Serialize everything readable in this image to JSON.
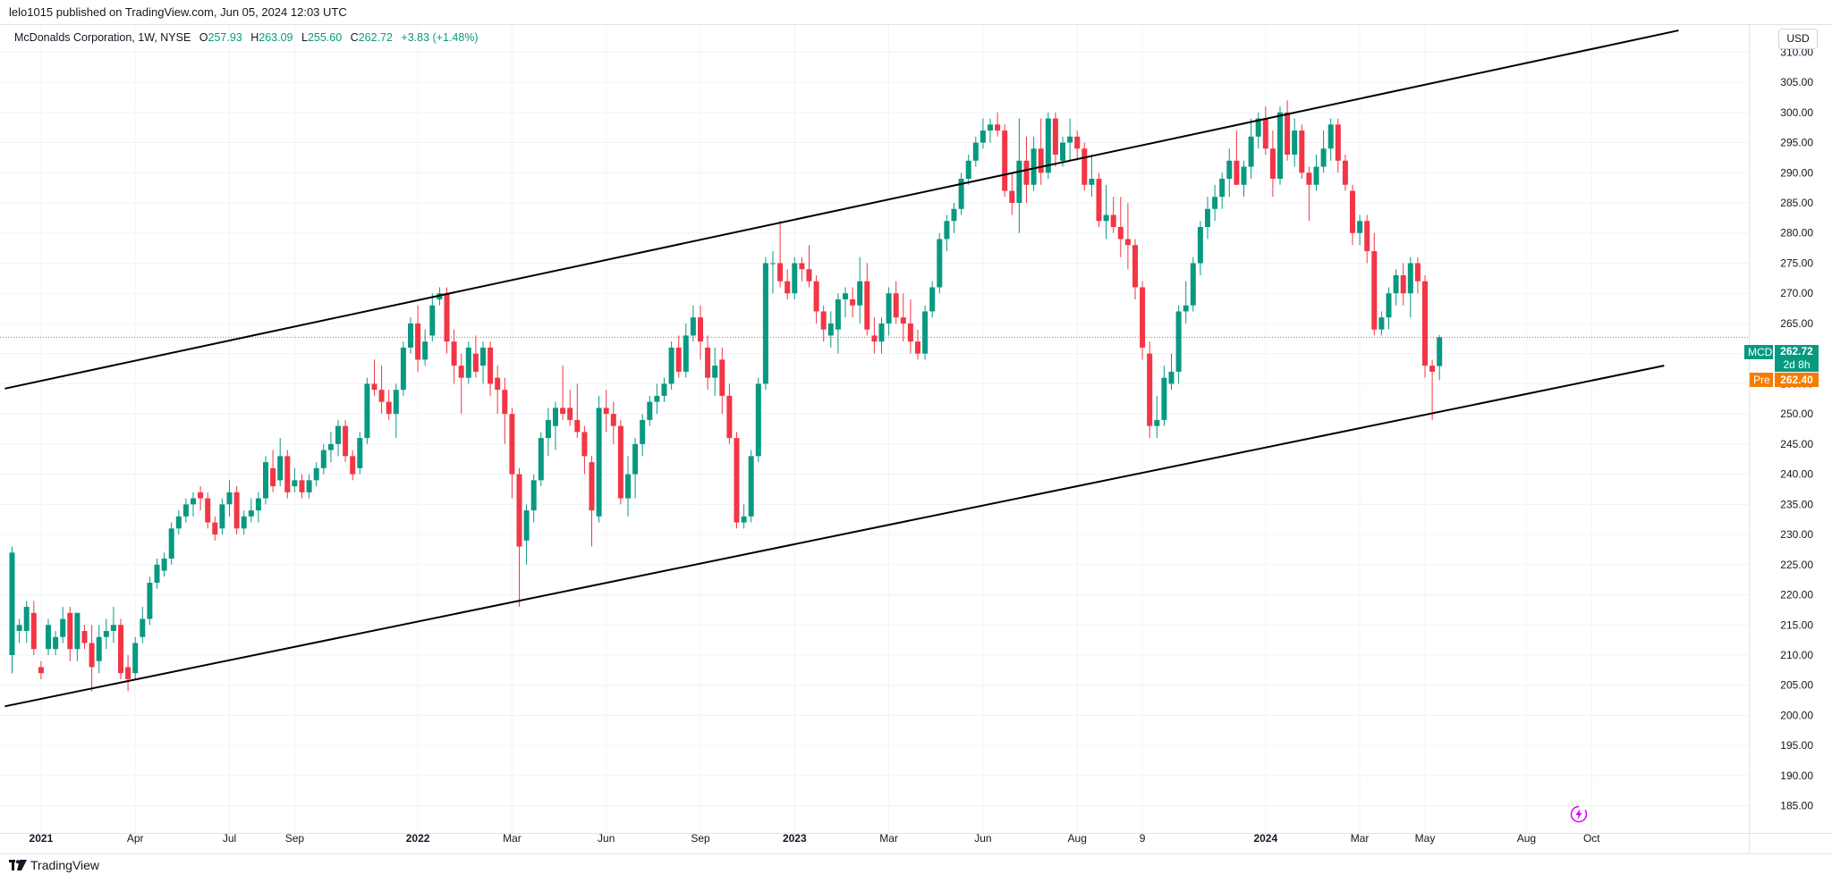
{
  "header": {
    "publish_line": "lelo1015 published on TradingView.com, Jun 05, 2024 12:03 UTC"
  },
  "legend": {
    "symbol_text": "McDonalds Corporation, 1W, NYSE",
    "open_label": "O",
    "open": "257.93",
    "high_label": "H",
    "high": "263.09",
    "low_label": "L",
    "low": "255.60",
    "close_label": "C",
    "close": "262.72",
    "change": "+3.83 (+1.48%)"
  },
  "currency_button": "USD",
  "price_tags": {
    "symbol": "MCD",
    "last": "262.72",
    "countdown": "2d 8h",
    "pre_label": "Pre",
    "pre_price": "262.40"
  },
  "footer": {
    "brand": "TradingView"
  },
  "colors": {
    "up": "#089981",
    "down": "#f23645",
    "grid": "#f0f3fa",
    "trendline": "#000000",
    "price_line": "#9c8a3c",
    "pre": "#f57c00"
  },
  "chart_data": {
    "type": "candlestick",
    "title": "McDonalds Corporation, 1W, NYSE",
    "ylim": [
      180.5,
      314.5
    ],
    "x_tick_labels": [
      "2021",
      "Apr",
      "Jul",
      "Sep",
      "2022",
      "Mar",
      "Jun",
      "Sep",
      "2023",
      "Mar",
      "Jun",
      "Aug",
      "9",
      "2024",
      "Mar",
      "May",
      "Aug",
      "Oct"
    ],
    "x_tick_positions_week": [
      4,
      17,
      30,
      39,
      56,
      69,
      82,
      95,
      108,
      121,
      134,
      147,
      156,
      173,
      186,
      195,
      209,
      218
    ],
    "y_ticks": [
      185,
      190,
      195,
      200,
      205,
      210,
      215,
      220,
      225,
      230,
      235,
      240,
      245,
      250,
      255,
      260,
      265,
      270,
      275,
      280,
      285,
      290,
      295,
      300,
      305,
      310
    ],
    "last_price": 262.72,
    "candles": [
      {
        "o": 210,
        "h": 228,
        "l": 207,
        "c": 227
      },
      {
        "o": 214,
        "h": 216,
        "l": 212,
        "c": 215
      },
      {
        "o": 214,
        "h": 219,
        "l": 212,
        "c": 218
      },
      {
        "o": 217,
        "h": 219,
        "l": 210,
        "c": 211
      },
      {
        "o": 208,
        "h": 209,
        "l": 206,
        "c": 207
      },
      {
        "o": 211,
        "h": 216,
        "l": 210,
        "c": 215
      },
      {
        "o": 211,
        "h": 214,
        "l": 210,
        "c": 213
      },
      {
        "o": 213,
        "h": 218,
        "l": 212,
        "c": 216
      },
      {
        "o": 217,
        "h": 218,
        "l": 209,
        "c": 211
      },
      {
        "o": 211,
        "h": 217,
        "l": 209,
        "c": 217
      },
      {
        "o": 214,
        "h": 215,
        "l": 211,
        "c": 212
      },
      {
        "o": 212,
        "h": 215,
        "l": 204,
        "c": 208
      },
      {
        "o": 209,
        "h": 215,
        "l": 207,
        "c": 213
      },
      {
        "o": 213,
        "h": 216,
        "l": 211,
        "c": 214
      },
      {
        "o": 214,
        "h": 218,
        "l": 212,
        "c": 215
      },
      {
        "o": 215,
        "h": 216,
        "l": 206,
        "c": 207
      },
      {
        "o": 208,
        "h": 210,
        "l": 204,
        "c": 206
      },
      {
        "o": 207,
        "h": 213,
        "l": 206,
        "c": 212
      },
      {
        "o": 213,
        "h": 218,
        "l": 212,
        "c": 216
      },
      {
        "o": 216,
        "h": 223,
        "l": 215,
        "c": 222
      },
      {
        "o": 222,
        "h": 226,
        "l": 221,
        "c": 225
      },
      {
        "o": 224,
        "h": 227,
        "l": 223,
        "c": 226
      },
      {
        "o": 226,
        "h": 232,
        "l": 225,
        "c": 231
      },
      {
        "o": 231,
        "h": 234,
        "l": 230,
        "c": 233
      },
      {
        "o": 233,
        "h": 236,
        "l": 232,
        "c": 235
      },
      {
        "o": 235,
        "h": 237,
        "l": 233,
        "c": 236
      },
      {
        "o": 237,
        "h": 238,
        "l": 234,
        "c": 236
      },
      {
        "o": 236,
        "h": 237,
        "l": 231,
        "c": 232
      },
      {
        "o": 232,
        "h": 233,
        "l": 229,
        "c": 230
      },
      {
        "o": 231,
        "h": 236,
        "l": 230,
        "c": 235
      },
      {
        "o": 235,
        "h": 239,
        "l": 233,
        "c": 237
      },
      {
        "o": 237,
        "h": 238,
        "l": 230,
        "c": 231
      },
      {
        "o": 231,
        "h": 234,
        "l": 230,
        "c": 233
      },
      {
        "o": 233,
        "h": 236,
        "l": 232,
        "c": 234
      },
      {
        "o": 234,
        "h": 237,
        "l": 232,
        "c": 236
      },
      {
        "o": 236,
        "h": 243,
        "l": 235,
        "c": 242
      },
      {
        "o": 241,
        "h": 244,
        "l": 237,
        "c": 238
      },
      {
        "o": 239,
        "h": 246,
        "l": 238,
        "c": 243
      },
      {
        "o": 243,
        "h": 244,
        "l": 236,
        "c": 237
      },
      {
        "o": 238,
        "h": 241,
        "l": 237,
        "c": 239
      },
      {
        "o": 239,
        "h": 240,
        "l": 236,
        "c": 237
      },
      {
        "o": 237,
        "h": 240,
        "l": 236,
        "c": 239
      },
      {
        "o": 239,
        "h": 242,
        "l": 238,
        "c": 241
      },
      {
        "o": 241,
        "h": 245,
        "l": 240,
        "c": 244
      },
      {
        "o": 244,
        "h": 247,
        "l": 242,
        "c": 245
      },
      {
        "o": 245,
        "h": 249,
        "l": 243,
        "c": 248
      },
      {
        "o": 248,
        "h": 249,
        "l": 242,
        "c": 243
      },
      {
        "o": 243,
        "h": 244,
        "l": 239,
        "c": 240
      },
      {
        "o": 241,
        "h": 247,
        "l": 240,
        "c": 246
      },
      {
        "o": 246,
        "h": 256,
        "l": 245,
        "c": 255
      },
      {
        "o": 255,
        "h": 259,
        "l": 253,
        "c": 254
      },
      {
        "o": 254,
        "h": 258,
        "l": 250,
        "c": 252
      },
      {
        "o": 252,
        "h": 254,
        "l": 249,
        "c": 250
      },
      {
        "o": 250,
        "h": 255,
        "l": 246,
        "c": 254
      },
      {
        "o": 254,
        "h": 262,
        "l": 253,
        "c": 261
      },
      {
        "o": 261,
        "h": 266,
        "l": 260,
        "c": 265
      },
      {
        "o": 265,
        "h": 268,
        "l": 257,
        "c": 259
      },
      {
        "o": 259,
        "h": 264,
        "l": 258,
        "c": 262
      },
      {
        "o": 263,
        "h": 270,
        "l": 262,
        "c": 268
      },
      {
        "o": 269,
        "h": 271,
        "l": 268,
        "c": 270
      },
      {
        "o": 270,
        "h": 271,
        "l": 260,
        "c": 262
      },
      {
        "o": 262,
        "h": 264,
        "l": 255,
        "c": 258
      },
      {
        "o": 258,
        "h": 260,
        "l": 250,
        "c": 256
      },
      {
        "o": 256,
        "h": 262,
        "l": 255,
        "c": 261
      },
      {
        "o": 260,
        "h": 263,
        "l": 256,
        "c": 257
      },
      {
        "o": 258,
        "h": 262,
        "l": 255,
        "c": 261
      },
      {
        "o": 261,
        "h": 262,
        "l": 253,
        "c": 255
      },
      {
        "o": 256,
        "h": 258,
        "l": 250,
        "c": 254
      },
      {
        "o": 254,
        "h": 256,
        "l": 245,
        "c": 250
      },
      {
        "o": 250,
        "h": 251,
        "l": 236,
        "c": 240
      },
      {
        "o": 240,
        "h": 241,
        "l": 218,
        "c": 228
      },
      {
        "o": 229,
        "h": 235,
        "l": 225,
        "c": 234
      },
      {
        "o": 234,
        "h": 240,
        "l": 232,
        "c": 239
      },
      {
        "o": 239,
        "h": 247,
        "l": 238,
        "c": 246
      },
      {
        "o": 246,
        "h": 251,
        "l": 243,
        "c": 249
      },
      {
        "o": 248,
        "h": 252,
        "l": 244,
        "c": 251
      },
      {
        "o": 251,
        "h": 258,
        "l": 249,
        "c": 250
      },
      {
        "o": 251,
        "h": 254,
        "l": 248,
        "c": 249
      },
      {
        "o": 249,
        "h": 255,
        "l": 246,
        "c": 247
      },
      {
        "o": 247,
        "h": 248,
        "l": 240,
        "c": 243
      },
      {
        "o": 242,
        "h": 243,
        "l": 228,
        "c": 234
      },
      {
        "o": 233,
        "h": 253,
        "l": 232,
        "c": 251
      },
      {
        "o": 251,
        "h": 254,
        "l": 247,
        "c": 250
      },
      {
        "o": 250,
        "h": 252,
        "l": 245,
        "c": 248
      },
      {
        "o": 248,
        "h": 249,
        "l": 235,
        "c": 236
      },
      {
        "o": 236,
        "h": 243,
        "l": 233,
        "c": 240
      },
      {
        "o": 240,
        "h": 246,
        "l": 236,
        "c": 245
      },
      {
        "o": 245,
        "h": 250,
        "l": 243,
        "c": 249
      },
      {
        "o": 249,
        "h": 253,
        "l": 248,
        "c": 252
      },
      {
        "o": 252,
        "h": 255,
        "l": 250,
        "c": 253
      },
      {
        "o": 253,
        "h": 256,
        "l": 252,
        "c": 255
      },
      {
        "o": 255,
        "h": 262,
        "l": 254,
        "c": 261
      },
      {
        "o": 261,
        "h": 263,
        "l": 256,
        "c": 257
      },
      {
        "o": 257,
        "h": 265,
        "l": 256,
        "c": 263
      },
      {
        "o": 263,
        "h": 268,
        "l": 262,
        "c": 266
      },
      {
        "o": 266,
        "h": 268,
        "l": 259,
        "c": 262
      },
      {
        "o": 261,
        "h": 263,
        "l": 254,
        "c": 256
      },
      {
        "o": 256,
        "h": 261,
        "l": 253,
        "c": 258
      },
      {
        "o": 259,
        "h": 261,
        "l": 250,
        "c": 253
      },
      {
        "o": 253,
        "h": 255,
        "l": 245,
        "c": 246
      },
      {
        "o": 246,
        "h": 247,
        "l": 231,
        "c": 232
      },
      {
        "o": 232,
        "h": 235,
        "l": 231,
        "c": 233
      },
      {
        "o": 233,
        "h": 244,
        "l": 232,
        "c": 243
      },
      {
        "o": 243,
        "h": 256,
        "l": 242,
        "c": 255
      },
      {
        "o": 255,
        "h": 276,
        "l": 254,
        "c": 275
      },
      {
        "o": 275,
        "h": 277,
        "l": 270,
        "c": 275
      },
      {
        "o": 275,
        "h": 282,
        "l": 271,
        "c": 272
      },
      {
        "o": 272,
        "h": 274,
        "l": 269,
        "c": 270
      },
      {
        "o": 270,
        "h": 276,
        "l": 269,
        "c": 275
      },
      {
        "o": 275,
        "h": 276,
        "l": 272,
        "c": 274
      },
      {
        "o": 274,
        "h": 278,
        "l": 271,
        "c": 272
      },
      {
        "o": 272,
        "h": 273,
        "l": 265,
        "c": 267
      },
      {
        "o": 267,
        "h": 268,
        "l": 262,
        "c": 264
      },
      {
        "o": 263,
        "h": 267,
        "l": 261,
        "c": 265
      },
      {
        "o": 264,
        "h": 270,
        "l": 260,
        "c": 269
      },
      {
        "o": 269,
        "h": 271,
        "l": 266,
        "c": 270
      },
      {
        "o": 269,
        "h": 271,
        "l": 266,
        "c": 268
      },
      {
        "o": 268,
        "h": 276,
        "l": 265,
        "c": 272
      },
      {
        "o": 272,
        "h": 275,
        "l": 263,
        "c": 264
      },
      {
        "o": 263,
        "h": 266,
        "l": 260,
        "c": 262
      },
      {
        "o": 262,
        "h": 266,
        "l": 260,
        "c": 265
      },
      {
        "o": 265,
        "h": 271,
        "l": 263,
        "c": 270
      },
      {
        "o": 270,
        "h": 272,
        "l": 265,
        "c": 266
      },
      {
        "o": 266,
        "h": 270,
        "l": 262,
        "c": 265
      },
      {
        "o": 265,
        "h": 269,
        "l": 260,
        "c": 262
      },
      {
        "o": 262,
        "h": 264,
        "l": 259,
        "c": 260
      },
      {
        "o": 260,
        "h": 268,
        "l": 259,
        "c": 267
      },
      {
        "o": 267,
        "h": 272,
        "l": 266,
        "c": 271
      },
      {
        "o": 271,
        "h": 280,
        "l": 270,
        "c": 279
      },
      {
        "o": 279,
        "h": 283,
        "l": 277,
        "c": 282
      },
      {
        "o": 282,
        "h": 285,
        "l": 280,
        "c": 284
      },
      {
        "o": 284,
        "h": 290,
        "l": 283,
        "c": 289
      },
      {
        "o": 289,
        "h": 293,
        "l": 288,
        "c": 292
      },
      {
        "o": 292,
        "h": 296,
        "l": 291,
        "c": 295
      },
      {
        "o": 295,
        "h": 299,
        "l": 294,
        "c": 297
      },
      {
        "o": 297,
        "h": 299,
        "l": 295,
        "c": 298
      },
      {
        "o": 298,
        "h": 300,
        "l": 296,
        "c": 297
      },
      {
        "o": 297,
        "h": 298,
        "l": 286,
        "c": 287
      },
      {
        "o": 287,
        "h": 290,
        "l": 283,
        "c": 285
      },
      {
        "o": 285,
        "h": 299,
        "l": 280,
        "c": 292
      },
      {
        "o": 292,
        "h": 296,
        "l": 285,
        "c": 288
      },
      {
        "o": 288,
        "h": 296,
        "l": 287,
        "c": 294
      },
      {
        "o": 294,
        "h": 299,
        "l": 288,
        "c": 290
      },
      {
        "o": 290,
        "h": 300,
        "l": 289,
        "c": 299
      },
      {
        "o": 299,
        "h": 300,
        "l": 291,
        "c": 293
      },
      {
        "o": 292,
        "h": 296,
        "l": 291,
        "c": 295
      },
      {
        "o": 295,
        "h": 299,
        "l": 292,
        "c": 296
      },
      {
        "o": 296,
        "h": 297,
        "l": 292,
        "c": 294
      },
      {
        "o": 294,
        "h": 295,
        "l": 287,
        "c": 288
      },
      {
        "o": 288,
        "h": 293,
        "l": 286,
        "c": 289
      },
      {
        "o": 289,
        "h": 290,
        "l": 281,
        "c": 282
      },
      {
        "o": 282,
        "h": 288,
        "l": 279,
        "c": 283
      },
      {
        "o": 283,
        "h": 286,
        "l": 280,
        "c": 281
      },
      {
        "o": 281,
        "h": 286,
        "l": 276,
        "c": 279
      },
      {
        "o": 279,
        "h": 285,
        "l": 274,
        "c": 278
      },
      {
        "o": 278,
        "h": 279,
        "l": 269,
        "c": 271
      },
      {
        "o": 271,
        "h": 272,
        "l": 259,
        "c": 261
      },
      {
        "o": 260,
        "h": 262,
        "l": 246,
        "c": 248
      },
      {
        "o": 248,
        "h": 253,
        "l": 246,
        "c": 249
      },
      {
        "o": 249,
        "h": 258,
        "l": 248,
        "c": 256
      },
      {
        "o": 255,
        "h": 260,
        "l": 254,
        "c": 257
      },
      {
        "o": 257,
        "h": 268,
        "l": 255,
        "c": 267
      },
      {
        "o": 267,
        "h": 272,
        "l": 265,
        "c": 268
      },
      {
        "o": 268,
        "h": 276,
        "l": 267,
        "c": 275
      },
      {
        "o": 275,
        "h": 282,
        "l": 273,
        "c": 281
      },
      {
        "o": 281,
        "h": 286,
        "l": 279,
        "c": 284
      },
      {
        "o": 284,
        "h": 288,
        "l": 282,
        "c": 286
      },
      {
        "o": 286,
        "h": 290,
        "l": 284,
        "c": 289
      },
      {
        "o": 289,
        "h": 294,
        "l": 286,
        "c": 292
      },
      {
        "o": 292,
        "h": 297,
        "l": 288,
        "c": 288
      },
      {
        "o": 288,
        "h": 292,
        "l": 286,
        "c": 291
      },
      {
        "o": 291,
        "h": 299,
        "l": 289,
        "c": 296
      },
      {
        "o": 296,
        "h": 300,
        "l": 294,
        "c": 299
      },
      {
        "o": 299,
        "h": 301,
        "l": 293,
        "c": 294
      },
      {
        "o": 294,
        "h": 297,
        "l": 286,
        "c": 289
      },
      {
        "o": 289,
        "h": 301,
        "l": 288,
        "c": 300
      },
      {
        "o": 300,
        "h": 302,
        "l": 292,
        "c": 293
      },
      {
        "o": 293,
        "h": 299,
        "l": 291,
        "c": 297
      },
      {
        "o": 297,
        "h": 298,
        "l": 289,
        "c": 290
      },
      {
        "o": 290,
        "h": 291,
        "l": 282,
        "c": 288
      },
      {
        "o": 288,
        "h": 293,
        "l": 287,
        "c": 291
      },
      {
        "o": 291,
        "h": 297,
        "l": 290,
        "c": 294
      },
      {
        "o": 294,
        "h": 299,
        "l": 292,
        "c": 298
      },
      {
        "o": 298,
        "h": 299,
        "l": 290,
        "c": 292
      },
      {
        "o": 292,
        "h": 293,
        "l": 287,
        "c": 288
      },
      {
        "o": 287,
        "h": 288,
        "l": 278,
        "c": 280
      },
      {
        "o": 280,
        "h": 283,
        "l": 278,
        "c": 282
      },
      {
        "o": 282,
        "h": 283,
        "l": 275,
        "c": 277
      },
      {
        "o": 277,
        "h": 280,
        "l": 263,
        "c": 264
      },
      {
        "o": 264,
        "h": 267,
        "l": 263,
        "c": 266
      },
      {
        "o": 266,
        "h": 271,
        "l": 264,
        "c": 270
      },
      {
        "o": 270,
        "h": 274,
        "l": 268,
        "c": 273
      },
      {
        "o": 273,
        "h": 275,
        "l": 268,
        "c": 270
      },
      {
        "o": 270,
        "h": 276,
        "l": 266,
        "c": 275
      },
      {
        "o": 275,
        "h": 276,
        "l": 270,
        "c": 272
      },
      {
        "o": 272,
        "h": 273,
        "l": 256,
        "c": 258
      },
      {
        "o": 258,
        "h": 259,
        "l": 249,
        "c": 257
      },
      {
        "o": 257.93,
        "h": 263.09,
        "l": 255.6,
        "c": 262.72
      }
    ],
    "trendlines": [
      {
        "name": "upper-channel",
        "points": [
          {
            "week": -1,
            "price": 254.2
          },
          {
            "week": 230,
            "price": 313.6
          }
        ]
      },
      {
        "name": "lower-channel",
        "points": [
          {
            "week": -1,
            "price": 201.5
          },
          {
            "week": 228,
            "price": 258.0
          }
        ]
      }
    ]
  }
}
